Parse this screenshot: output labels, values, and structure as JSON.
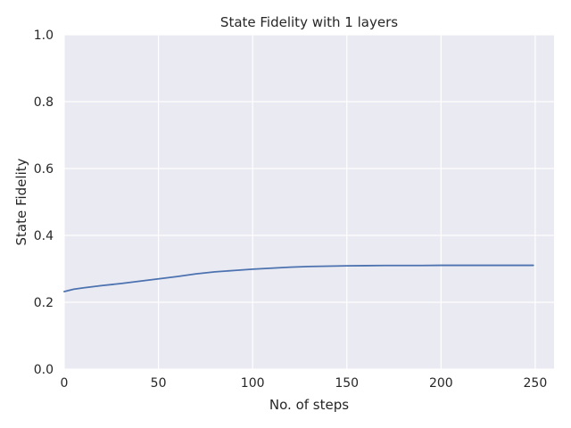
{
  "chart_data": {
    "type": "line",
    "title": "State Fidelity with 1 layers",
    "xlabel": "No. of steps",
    "ylabel": "State Fidelity",
    "xlim": [
      0,
      260
    ],
    "ylim": [
      0,
      1.0
    ],
    "xticks": [
      0,
      50,
      100,
      150,
      200,
      250
    ],
    "yticks": [
      0.0,
      0.2,
      0.4,
      0.6,
      0.8,
      1.0
    ],
    "xtick_labels": [
      "0",
      "50",
      "100",
      "150",
      "200",
      "250"
    ],
    "ytick_labels": [
      "0.0",
      "0.2",
      "0.4",
      "0.6",
      "0.8",
      "1.0"
    ],
    "grid": true,
    "colors": {
      "background": "#eaeaf2",
      "grid": "#ffffff",
      "line": "#4c72b0"
    },
    "series": [
      {
        "x": [
          0,
          5,
          10,
          20,
          30,
          40,
          50,
          60,
          70,
          80,
          90,
          100,
          110,
          120,
          130,
          140,
          150,
          160,
          170,
          180,
          190,
          200,
          210,
          220,
          230,
          240,
          249
        ],
        "y": [
          0.232,
          0.239,
          0.243,
          0.25,
          0.256,
          0.263,
          0.27,
          0.277,
          0.285,
          0.291,
          0.295,
          0.299,
          0.302,
          0.305,
          0.307,
          0.308,
          0.309,
          0.3095,
          0.31,
          0.31,
          0.31,
          0.3105,
          0.3105,
          0.3105,
          0.3105,
          0.3105,
          0.3105
        ]
      }
    ]
  }
}
